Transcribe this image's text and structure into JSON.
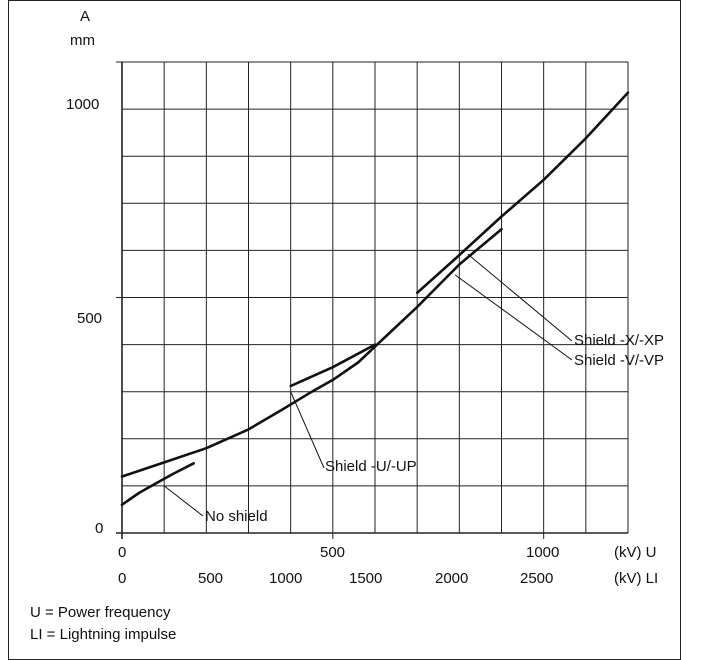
{
  "chart_data": {
    "type": "line",
    "ylabel": "A",
    "yunit": "mm",
    "ylim": [
      0,
      1000
    ],
    "yticks": [
      "0",
      "500",
      "1000"
    ],
    "xlim": [
      0,
      1200
    ],
    "x_axis_primary": {
      "label": "(kV) U",
      "ticks": [
        "0",
        "500",
        "1000"
      ]
    },
    "x_axis_secondary": {
      "label": "(kV) LI",
      "ticks": [
        "0",
        "500",
        "1000",
        "1500",
        "2000",
        "2500"
      ]
    },
    "grid": true,
    "series": [
      {
        "name": "No shield",
        "x": [
          0,
          40,
          80,
          120,
          170
        ],
        "y": [
          60,
          85,
          105,
          125,
          148
        ]
      },
      {
        "name": "Shield -U/-UP",
        "x": [
          0,
          100,
          200,
          300,
          380,
          450,
          500,
          560
        ],
        "y": [
          120,
          150,
          180,
          220,
          262,
          300,
          325,
          362
        ]
      },
      {
        "name": "Shield -U/-UP",
        "x": [
          400,
          500,
          600
        ],
        "y": [
          312,
          352,
          400
        ]
      },
      {
        "name": "Shield -V/-VP",
        "x": [
          560,
          700,
          800,
          900
        ],
        "y": [
          362,
          480,
          570,
          645
        ]
      },
      {
        "name": "Shield -X/-XP",
        "x": [
          700,
          800,
          900,
          1000,
          1100,
          1200
        ],
        "y": [
          510,
          590,
          672,
          750,
          838,
          935
        ]
      }
    ],
    "annotations": [
      "No shield",
      "Shield -U/-UP",
      "Shield -X/-XP",
      "Shield -V/-VP"
    ]
  },
  "legend_notes": [
    "U = Power frequency",
    "LI = Lightning impulse"
  ]
}
